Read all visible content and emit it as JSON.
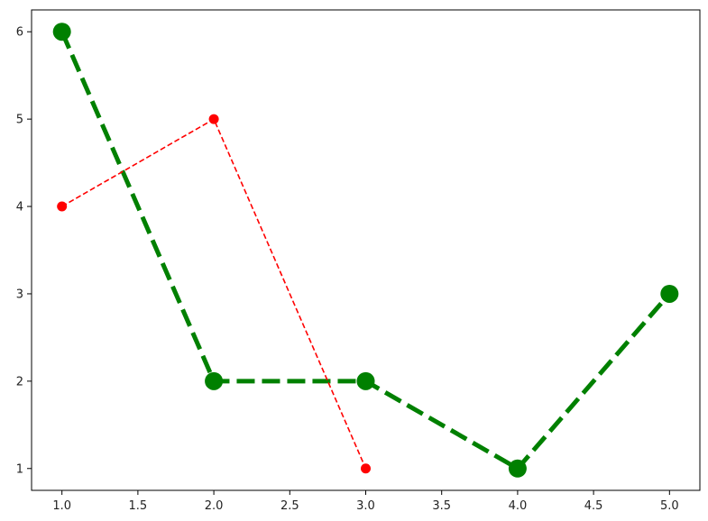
{
  "chart_data": {
    "type": "line",
    "title": "",
    "xlabel": "",
    "ylabel": "",
    "xlim": [
      0.8,
      5.2
    ],
    "ylim": [
      0.75,
      6.25
    ],
    "x_ticks": [
      1.0,
      1.5,
      2.0,
      2.5,
      3.0,
      3.5,
      4.0,
      4.5,
      5.0
    ],
    "x_tick_labels": [
      "1.0",
      "1.5",
      "2.0",
      "2.5",
      "3.0",
      "3.5",
      "4.0",
      "4.5",
      "5.0"
    ],
    "y_ticks": [
      1,
      2,
      3,
      4,
      5,
      6
    ],
    "y_tick_labels": [
      "1",
      "2",
      "3",
      "4",
      "5",
      "6"
    ],
    "grid": false,
    "legend": "none",
    "series": [
      {
        "x": [
          1,
          2,
          3,
          4,
          5
        ],
        "values": [
          6,
          2,
          2,
          1,
          3
        ],
        "color": "#008000",
        "line_style": "dashed-thick",
        "marker": "circle-large"
      },
      {
        "x": [
          1,
          2,
          3
        ],
        "values": [
          4,
          5,
          1
        ],
        "color": "#ff0000",
        "line_style": "dashed-thin",
        "marker": "circle-small"
      }
    ]
  }
}
